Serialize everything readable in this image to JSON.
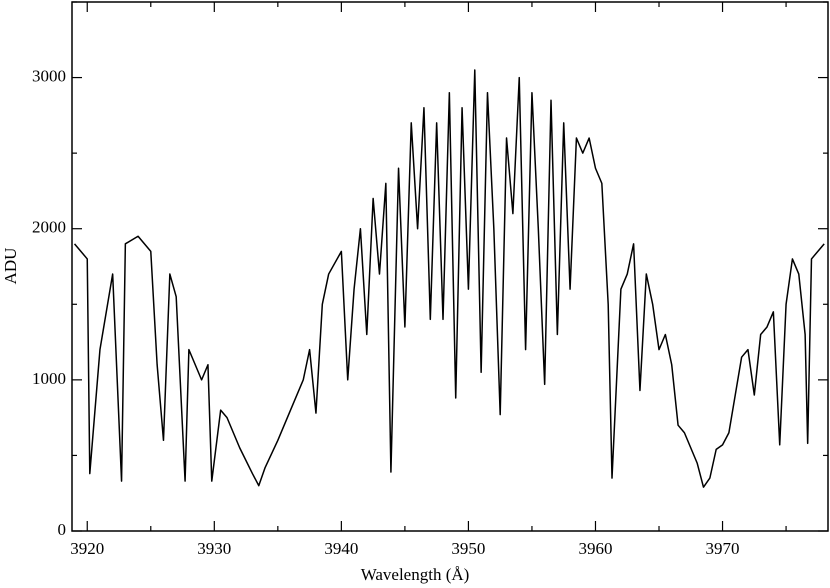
{
  "chart_data": {
    "type": "line",
    "xlabel": "Wavelength (Å)",
    "ylabel": "ADU",
    "xlim": [
      3918.8,
      3978.3
    ],
    "ylim": [
      0,
      3500
    ],
    "xticks": [
      3920,
      3930,
      3940,
      3950,
      3960,
      3970
    ],
    "xminorticks": [
      3925,
      3935,
      3945,
      3955,
      3965,
      3975
    ],
    "yticks": [
      0,
      1000,
      2000,
      3000
    ],
    "yminorticks": [
      500,
      1500,
      2500,
      3500
    ],
    "series": [
      {
        "name": "spectrum",
        "color": "#000000",
        "x": [
          3919,
          3920,
          3920.2,
          3921,
          3922,
          3922.7,
          3923,
          3924,
          3925,
          3925.5,
          3926,
          3926.5,
          3927,
          3927.7,
          3928,
          3929,
          3929.5,
          3929.8,
          3930.5,
          3931,
          3932,
          3933,
          3933.5,
          3934,
          3935,
          3936,
          3937,
          3937.5,
          3938,
          3938.5,
          3939,
          3940,
          3940.5,
          3941,
          3941.5,
          3942,
          3942.5,
          3943,
          3943.5,
          3943.9,
          3944.5,
          3945,
          3945.5,
          3946,
          3946.5,
          3947,
          3947.5,
          3948,
          3948.5,
          3949,
          3949.5,
          3950,
          3950.5,
          3951,
          3951.5,
          3952,
          3952.5,
          3953,
          3953.5,
          3954,
          3954.5,
          3955,
          3955.5,
          3956,
          3956.5,
          3957,
          3957.5,
          3958,
          3958.5,
          3959,
          3959.5,
          3960,
          3960.5,
          3961,
          3961.3,
          3962,
          3962.5,
          3963,
          3963.5,
          3964,
          3964.5,
          3965,
          3965.5,
          3966,
          3966.5,
          3967,
          3968,
          3968.5,
          3969,
          3969.5,
          3970,
          3970.5,
          3971,
          3971.5,
          3972,
          3972.5,
          3973,
          3973.5,
          3974,
          3974.5,
          3975,
          3975.5,
          3976,
          3976.5,
          3976.7,
          3977,
          3978
        ],
        "values": [
          1900,
          1800,
          380,
          1200,
          1700,
          330,
          1900,
          1950,
          1850,
          1100,
          600,
          1700,
          1550,
          330,
          1200,
          1000,
          1100,
          330,
          800,
          750,
          550,
          380,
          300,
          420,
          600,
          800,
          1000,
          1200,
          780,
          1500,
          1700,
          1850,
          1000,
          1600,
          2000,
          1300,
          2200,
          1700,
          2300,
          390,
          2400,
          1350,
          2700,
          2000,
          2800,
          1400,
          2700,
          1400,
          2900,
          880,
          2800,
          1600,
          3050,
          1050,
          2900,
          2000,
          770,
          2600,
          2100,
          3000,
          1200,
          2900,
          2000,
          970,
          2850,
          1300,
          2700,
          1600,
          2600,
          2500,
          2600,
          2400,
          2300,
          1500,
          350,
          1600,
          1700,
          1900,
          930,
          1700,
          1500,
          1200,
          1300,
          1100,
          700,
          650,
          450,
          290,
          350,
          540,
          570,
          650,
          900,
          1150,
          1200,
          900,
          1300,
          1350,
          1450,
          570,
          1500,
          1800,
          1700,
          1300,
          580,
          1800,
          1900
        ]
      }
    ]
  }
}
